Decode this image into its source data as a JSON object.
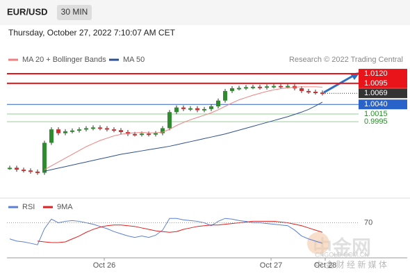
{
  "header": {
    "symbol": "EUR/USD",
    "timeframe": "30 MIN",
    "timestamp": "Thursday, October 27, 2022 7:10:07 AM CET"
  },
  "chart_data": [
    {
      "type": "candlestick",
      "legend": [
        {
          "name": "MA 20 + Bollinger Bands",
          "color": "#f08080"
        },
        {
          "name": "MA 50",
          "color": "#2f4f8f"
        }
      ],
      "source": "Research © 2022 Trading Central",
      "x": [
        0,
        1,
        2,
        3,
        4,
        5,
        6,
        7,
        8,
        9,
        10,
        11,
        12,
        13,
        14,
        15,
        16,
        17,
        18,
        19,
        20,
        21,
        22,
        23,
        24,
        25,
        26,
        27,
        28,
        29,
        30,
        31,
        32,
        33,
        34,
        35,
        36,
        37,
        38,
        39,
        40,
        41,
        42,
        43,
        44,
        45
      ],
      "xlim": [
        0,
        46
      ],
      "xticks": [
        {
          "value": 13.6,
          "label": "Oct 26"
        },
        {
          "value": 37.6,
          "label": "Oct 27"
        },
        {
          "value": 45.4,
          "label": "Oct 28"
        }
      ],
      "ylim": [
        0.9796,
        1.014
      ],
      "series": [
        {
          "name": "EUR/USD",
          "color": "#2e8b2e",
          "down_color": "#d03030",
          "values": [
            0.9875,
            0.987,
            0.9868,
            0.9865,
            0.9862,
            0.994,
            0.9975,
            0.9965,
            0.997,
            0.9972,
            0.9975,
            0.9978,
            0.998,
            0.9978,
            0.9975,
            0.9973,
            0.9968,
            0.9963,
            0.9962,
            0.9964,
            0.9962,
            0.9965,
            0.9978,
            1.002,
            1.0032,
            1.0028,
            1.003,
            1.0025,
            1.0028,
            1.0035,
            1.005,
            1.0075,
            1.0082,
            1.0083,
            1.0085,
            1.0086,
            1.0084,
            1.0087,
            1.0088,
            1.0087,
            1.0088,
            1.0082,
            1.0075,
            1.0073,
            1.0071,
            1.0069
          ]
        },
        {
          "name": "MA 20",
          "color": "#f08080",
          "values": [
            null,
            null,
            null,
            null,
            null,
            0.987,
            0.988,
            0.989,
            0.99,
            0.991,
            0.992,
            0.993,
            0.9938,
            0.9946,
            0.9952,
            0.9958,
            0.9962,
            0.9965,
            0.9966,
            0.9967,
            0.9966,
            0.9966,
            0.9968,
            0.9975,
            0.9985,
            0.9993,
            1.0,
            1.0006,
            1.0012,
            1.0018,
            1.0026,
            1.0035,
            1.0044,
            1.0052,
            1.0058,
            1.0064,
            1.0069,
            1.0074,
            1.0078,
            1.0081,
            1.0083,
            1.0085,
            1.0086,
            1.0086,
            1.0086,
            1.0085
          ]
        },
        {
          "name": "MA 50",
          "color": "#2f4f8f",
          "values": [
            null,
            null,
            null,
            null,
            null,
            0.9866,
            0.987,
            0.9874,
            0.9878,
            0.9882,
            0.9886,
            0.989,
            0.9894,
            0.9898,
            0.9902,
            0.9906,
            0.991,
            0.9913,
            0.9916,
            0.9919,
            0.9922,
            0.9925,
            0.9928,
            0.9931,
            0.9935,
            0.9939,
            0.9943,
            0.9947,
            0.9951,
            0.9955,
            0.9959,
            0.9963,
            0.9968,
            0.9973,
            0.9978,
            0.9983,
            0.9988,
            0.9993,
            0.9998,
            1.0003,
            1.0008,
            1.0014,
            1.002,
            1.0027,
            1.0036,
            1.0046
          ]
        }
      ],
      "levels": [
        {
          "value": 1.012,
          "label": "1.0120",
          "color": "#e8141a"
        },
        {
          "value": 1.0095,
          "label": "1.0095",
          "color": "#e8141a"
        },
        {
          "value": 1.0069,
          "label": "1.0069",
          "color": "#333333"
        },
        {
          "value": 1.004,
          "label": "1.0040",
          "color": "#2962c8"
        },
        {
          "value": 1.0015,
          "label": "1.0015",
          "color": "#8fd08f"
        },
        {
          "value": 0.9995,
          "label": "0.9995",
          "color": "#8fd08f"
        }
      ]
    },
    {
      "type": "line",
      "ylim": [
        25,
        80
      ],
      "yticks": [
        70
      ],
      "series": [
        {
          "name": "RSI",
          "color": "#5b7fd6",
          "values": [
            48,
            45,
            44,
            42,
            40,
            62,
            75,
            70,
            72,
            73,
            72,
            70,
            68,
            65,
            62,
            58,
            55,
            52,
            50,
            52,
            50,
            53,
            60,
            76,
            76,
            74,
            73,
            72,
            70,
            66,
            72,
            76,
            75,
            73,
            72,
            70,
            70,
            69,
            68,
            67,
            66,
            60,
            52,
            48,
            45,
            42
          ]
        },
        {
          "name": "9MA",
          "color": "#e02020",
          "values": [
            null,
            null,
            null,
            null,
            45,
            44,
            43,
            43,
            44,
            48,
            52,
            57,
            61,
            64,
            66,
            67,
            67,
            66,
            65,
            63,
            61,
            59,
            58,
            57,
            58,
            61,
            63,
            65,
            66,
            67,
            67,
            68,
            69,
            70,
            71,
            72,
            72,
            72,
            72,
            71,
            70,
            68,
            66,
            63,
            60,
            57
          ]
        }
      ]
    }
  ],
  "watermark": {
    "brand": "中金网",
    "domain": "CNGOLD.COM.CN",
    "slogan": "中 金 财 经 新 媒 体"
  }
}
